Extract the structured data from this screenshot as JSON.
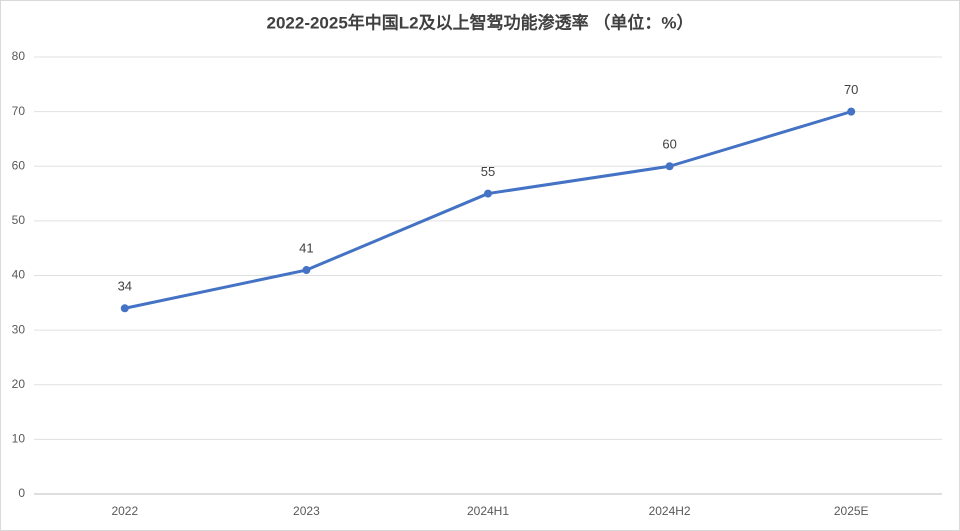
{
  "chart_data": {
    "type": "line",
    "title": "2022-2025年中国L2及以上智驾功能渗透率 （单位：%）",
    "categories": [
      "2022",
      "2023",
      "2024H1",
      "2024H2",
      "2025E"
    ],
    "values": [
      34,
      41,
      55,
      60,
      70
    ],
    "color": "#4472c4",
    "ylim": [
      0,
      80
    ],
    "yticks": [
      0,
      10,
      20,
      30,
      40,
      50,
      60,
      70,
      80
    ],
    "grid": true
  }
}
